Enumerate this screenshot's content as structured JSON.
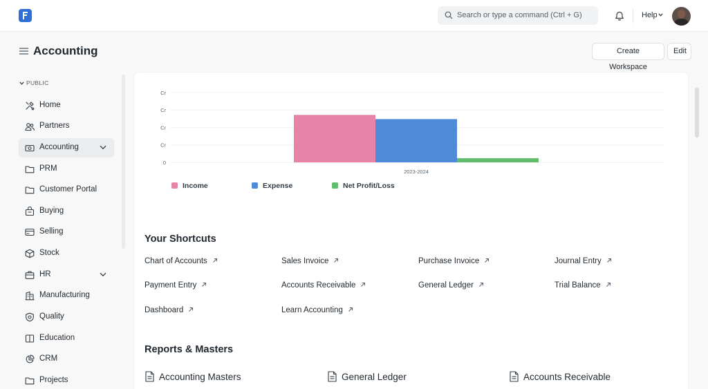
{
  "navbar": {
    "search_placeholder": "Search or type a command (Ctrl + G)",
    "help_label": "Help"
  },
  "page": {
    "title": "Accounting",
    "create_workspace_label": "Create Workspace",
    "edit_label": "Edit"
  },
  "sidebar": {
    "section_label": "PUBLIC",
    "items": [
      {
        "label": "Home",
        "icon": "tools-icon"
      },
      {
        "label": "Partners",
        "icon": "users-icon"
      },
      {
        "label": "Accounting",
        "icon": "money-icon",
        "active": true,
        "expandable": true
      },
      {
        "label": "PRM",
        "icon": "folder-icon"
      },
      {
        "label": "Customer Portal",
        "icon": "folder-icon"
      },
      {
        "label": "Buying",
        "icon": "shopping-bag-icon"
      },
      {
        "label": "Selling",
        "icon": "card-icon"
      },
      {
        "label": "Stock",
        "icon": "box-icon"
      },
      {
        "label": "HR",
        "icon": "briefcase-icon",
        "expandable": true
      },
      {
        "label": "Manufacturing",
        "icon": "building-icon"
      },
      {
        "label": "Quality",
        "icon": "shield-icon"
      },
      {
        "label": "Education",
        "icon": "book-icon"
      },
      {
        "label": "CRM",
        "icon": "crm-icon"
      },
      {
        "label": "Projects",
        "icon": "folder-icon"
      }
    ]
  },
  "chart_data": {
    "type": "bar",
    "categories": [
      "2023-2024"
    ],
    "series": [
      {
        "name": "Income",
        "values": [
          0.68
        ],
        "color": "#e783a6"
      },
      {
        "name": "Expense",
        "values": [
          0.62
        ],
        "color": "#4f8ad9"
      },
      {
        "name": "Net Profit/Loss",
        "values": [
          0.06
        ],
        "color": "#5fbd6c"
      }
    ],
    "y_tick_labels": [
      "0",
      "Cr",
      "Cr",
      "Cr",
      "Cr"
    ],
    "ylim": [
      0,
      1
    ],
    "grid": true,
    "legend": "bottom"
  },
  "shortcuts": {
    "title": "Your Shortcuts",
    "items": [
      "Chart of Accounts",
      "Sales Invoice",
      "Purchase Invoice",
      "Journal Entry",
      "Payment Entry",
      "Accounts Receivable",
      "General Ledger",
      "Trial Balance",
      "Dashboard",
      "Learn Accounting"
    ]
  },
  "reports": {
    "title": "Reports & Masters",
    "items": [
      "Accounting Masters",
      "General Ledger",
      "Accounts Receivable"
    ]
  }
}
